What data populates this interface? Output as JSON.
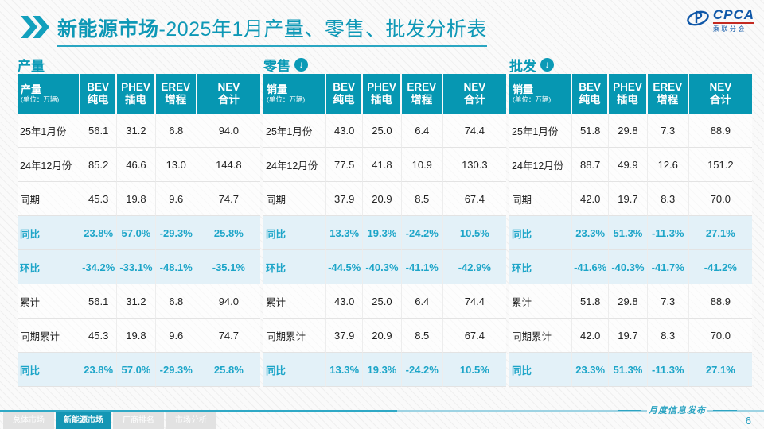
{
  "header": {
    "title_bold": "新能源市场",
    "title_rest": "-2025年1月产量、零售、批发分析表",
    "logo_brand": "CPCA",
    "logo_sub": "乘联分会"
  },
  "colors": {
    "teal_header": "#0697b2",
    "section_teal": "#0b9ab6",
    "pct_text": "#1da5c8",
    "pct_row_bg": "#e3f1f8",
    "active_tab": "#1496b4"
  },
  "tables": [
    {
      "section": "产量",
      "arrow": false,
      "first_col": "产量",
      "unit": "(单位：万辆)",
      "columns": [
        {
          "en": "BEV",
          "zh": "纯电"
        },
        {
          "en": "PHEV",
          "zh": "插电"
        },
        {
          "en": "EREV",
          "zh": "增程"
        },
        {
          "en": "NEV",
          "zh": "合计"
        }
      ],
      "rows": [
        {
          "label": "25年1月份",
          "style": "normal",
          "values": [
            "56.1",
            "31.2",
            "6.8",
            "94.0"
          ]
        },
        {
          "label": "24年12月份",
          "style": "normal",
          "values": [
            "85.2",
            "46.6",
            "13.0",
            "144.8"
          ]
        },
        {
          "label": "同期",
          "style": "normal",
          "values": [
            "45.3",
            "19.8",
            "9.6",
            "74.7"
          ]
        },
        {
          "label": "同比",
          "style": "pct",
          "values": [
            "23.8%",
            "57.0%",
            "-29.3%",
            "25.8%"
          ]
        },
        {
          "label": "环比",
          "style": "pct",
          "values": [
            "-34.2%",
            "-33.1%",
            "-48.1%",
            "-35.1%"
          ]
        },
        {
          "label": "累计",
          "style": "normal",
          "values": [
            "56.1",
            "31.2",
            "6.8",
            "94.0"
          ]
        },
        {
          "label": "同期累计",
          "style": "normal",
          "values": [
            "45.3",
            "19.8",
            "9.6",
            "74.7"
          ]
        },
        {
          "label": "同比",
          "style": "pct",
          "values": [
            "23.8%",
            "57.0%",
            "-29.3%",
            "25.8%"
          ]
        }
      ]
    },
    {
      "section": "零售",
      "arrow": true,
      "first_col": "销量",
      "unit": "(单位：万辆)",
      "columns": [
        {
          "en": "BEV",
          "zh": "纯电"
        },
        {
          "en": "PHEV",
          "zh": "插电"
        },
        {
          "en": "EREV",
          "zh": "增程"
        },
        {
          "en": "NEV",
          "zh": "合计"
        }
      ],
      "rows": [
        {
          "label": "25年1月份",
          "style": "normal",
          "values": [
            "43.0",
            "25.0",
            "6.4",
            "74.4"
          ]
        },
        {
          "label": "24年12月份",
          "style": "normal",
          "values": [
            "77.5",
            "41.8",
            "10.9",
            "130.3"
          ]
        },
        {
          "label": "同期",
          "style": "normal",
          "values": [
            "37.9",
            "20.9",
            "8.5",
            "67.4"
          ]
        },
        {
          "label": "同比",
          "style": "pct",
          "values": [
            "13.3%",
            "19.3%",
            "-24.2%",
            "10.5%"
          ]
        },
        {
          "label": "环比",
          "style": "pct",
          "values": [
            "-44.5%",
            "-40.3%",
            "-41.1%",
            "-42.9%"
          ]
        },
        {
          "label": "累计",
          "style": "normal",
          "values": [
            "43.0",
            "25.0",
            "6.4",
            "74.4"
          ]
        },
        {
          "label": "同期累计",
          "style": "normal",
          "values": [
            "37.9",
            "20.9",
            "8.5",
            "67.4"
          ]
        },
        {
          "label": "同比",
          "style": "pct",
          "values": [
            "13.3%",
            "19.3%",
            "-24.2%",
            "10.5%"
          ]
        }
      ]
    },
    {
      "section": "批发",
      "arrow": true,
      "first_col": "销量",
      "unit": "(单位：万辆)",
      "columns": [
        {
          "en": "BEV",
          "zh": "纯电"
        },
        {
          "en": "PHEV",
          "zh": "插电"
        },
        {
          "en": "EREV",
          "zh": "增程"
        },
        {
          "en": "NEV",
          "zh": "合计"
        }
      ],
      "rows": [
        {
          "label": "25年1月份",
          "style": "normal",
          "values": [
            "51.8",
            "29.8",
            "7.3",
            "88.9"
          ]
        },
        {
          "label": "24年12月份",
          "style": "normal",
          "values": [
            "88.7",
            "49.9",
            "12.6",
            "151.2"
          ]
        },
        {
          "label": "同期",
          "style": "normal",
          "values": [
            "42.0",
            "19.7",
            "8.3",
            "70.0"
          ]
        },
        {
          "label": "同比",
          "style": "pct",
          "values": [
            "23.3%",
            "51.3%",
            "-11.3%",
            "27.1%"
          ]
        },
        {
          "label": "环比",
          "style": "pct",
          "values": [
            "-41.6%",
            "-40.3%",
            "-41.7%",
            "-41.2%"
          ]
        },
        {
          "label": "累计",
          "style": "normal",
          "values": [
            "51.8",
            "29.8",
            "7.3",
            "88.9"
          ]
        },
        {
          "label": "同期累计",
          "style": "normal",
          "values": [
            "42.0",
            "19.7",
            "8.3",
            "70.0"
          ]
        },
        {
          "label": "同比",
          "style": "pct",
          "values": [
            "23.3%",
            "51.3%",
            "-11.3%",
            "27.1%"
          ]
        }
      ]
    }
  ],
  "footer": {
    "tabs": [
      {
        "label": "总体市场",
        "active": false
      },
      {
        "label": "新能源市场",
        "active": true
      },
      {
        "label": "厂商排名",
        "active": false
      },
      {
        "label": "市场分析",
        "active": false
      }
    ],
    "note": "月度信息发布",
    "page_number": "6"
  }
}
